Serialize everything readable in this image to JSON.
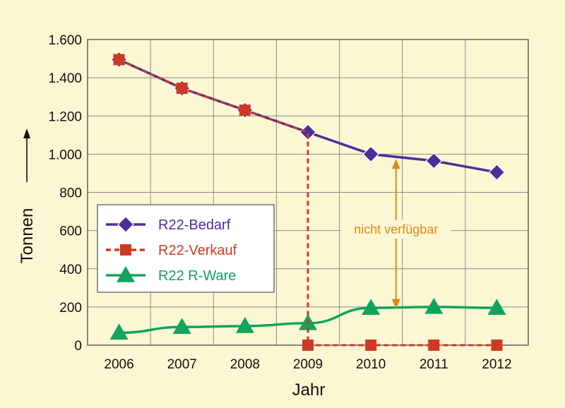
{
  "colors": {
    "background": "#fbf7d3",
    "grid": "#8a8a8a",
    "bedarf": "#4a2f96",
    "verkauf": "#cc3a24",
    "r_ware": "#12a35f",
    "annotation": "#d98a1e"
  },
  "chart_data": {
    "type": "line",
    "x": [
      2006,
      2007,
      2008,
      2009,
      2010,
      2011,
      2012
    ],
    "xlabel": "Jahr",
    "ylabel": "Tonnen",
    "ylim": [
      0,
      1600
    ],
    "yticks": [
      0,
      200,
      400,
      600,
      800,
      1000,
      1200,
      1400,
      1600
    ],
    "ytick_labels": [
      "0",
      "200",
      "400",
      "600",
      "800",
      "1.000",
      "1.200",
      "1.400",
      "1.600"
    ],
    "xtick_labels": [
      "2006",
      "2007",
      "2008",
      "2009",
      "2010",
      "2011",
      "2012"
    ],
    "grid": true,
    "legend_position": "left-middle",
    "series": [
      {
        "name": "R22-Bedarf",
        "style": "solid",
        "marker": "diamond",
        "x": [
          2006,
          2007,
          2008,
          2009,
          2010,
          2011,
          2012
        ],
        "values": [
          1495,
          1345,
          1230,
          1115,
          1000,
          965,
          905
        ]
      },
      {
        "name": "R22-Verkauf",
        "style": "dashed",
        "marker": "square",
        "x": [
          2006,
          2007,
          2008,
          2009,
          2009,
          2010,
          2011,
          2012
        ],
        "values": [
          1495,
          1345,
          1230,
          1115,
          0,
          0,
          0,
          0
        ]
      },
      {
        "name": "R22 R-Ware",
        "style": "solid",
        "marker": "triangle",
        "x": [
          2006,
          2007,
          2008,
          2009,
          2010,
          2011,
          2012
        ],
        "values": [
          65,
          95,
          100,
          115,
          195,
          200,
          195
        ]
      }
    ],
    "annotations": [
      {
        "text": "nicht verfügbar",
        "x": 2010.4,
        "y_from": 975,
        "y_to": 190
      }
    ]
  }
}
